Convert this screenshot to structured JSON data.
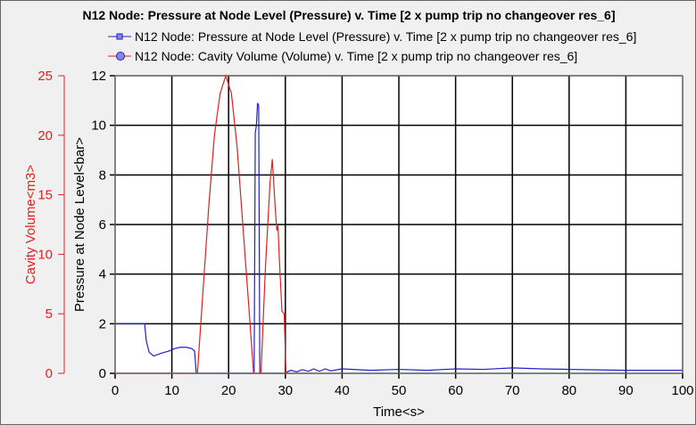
{
  "chart_data": {
    "type": "line",
    "title": "N12 Node: Pressure at Node Level (Pressure) v. Time [2 x pump trip no changeover res_6]",
    "xlabel": "Time<s>",
    "ylabel": "Pressure at Node Level<bar>",
    "y2label": "Cavity Volume<m3>",
    "xlim": [
      0,
      100
    ],
    "ylim": [
      0,
      12
    ],
    "y2lim": [
      0,
      25
    ],
    "xticks": [
      0,
      10,
      20,
      30,
      40,
      50,
      60,
      70,
      80,
      90,
      100
    ],
    "yticks": [
      0,
      2,
      4,
      6,
      8,
      10,
      12
    ],
    "y2ticks": [
      0,
      5,
      10,
      15,
      20,
      25
    ],
    "grid": true,
    "legend_position": "top",
    "series": [
      {
        "name": "N12 Node: Pressure at Node Level (Pressure) v. Time [2 x pump trip no changeover res_6]",
        "color": "#2020c8",
        "axis": "left",
        "points": [
          [
            0,
            2
          ],
          [
            5.2,
            2
          ],
          [
            5.5,
            1.3
          ],
          [
            6,
            0.85
          ],
          [
            6.8,
            0.7
          ],
          [
            8,
            0.8
          ],
          [
            9.5,
            0.9
          ],
          [
            10.5,
            1.0
          ],
          [
            11.5,
            1.05
          ],
          [
            12.5,
            1.05
          ],
          [
            13.5,
            1.0
          ],
          [
            14,
            0.9
          ],
          [
            14.3,
            0
          ],
          [
            24.5,
            0
          ],
          [
            24.7,
            9.7
          ],
          [
            24.9,
            10.0
          ],
          [
            25.1,
            10.9
          ],
          [
            25.3,
            10.8
          ],
          [
            25.5,
            0
          ],
          [
            30,
            0
          ],
          [
            30.5,
            0.08
          ],
          [
            31,
            0.12
          ],
          [
            32,
            0.06
          ],
          [
            33,
            0.15
          ],
          [
            34,
            0.08
          ],
          [
            35,
            0.18
          ],
          [
            36,
            0.08
          ],
          [
            37,
            0.18
          ],
          [
            38,
            0.1
          ],
          [
            40,
            0.18
          ],
          [
            45,
            0.12
          ],
          [
            50,
            0.16
          ],
          [
            55,
            0.12
          ],
          [
            60,
            0.18
          ],
          [
            65,
            0.16
          ],
          [
            70,
            0.22
          ],
          [
            75,
            0.18
          ],
          [
            80,
            0.16
          ],
          [
            85,
            0.14
          ],
          [
            90,
            0.12
          ],
          [
            95,
            0.12
          ],
          [
            100,
            0.12
          ]
        ]
      },
      {
        "name": "N12 Node: Cavity Volume (Volume) v. Time [2 x pump trip no changeover res_6]",
        "color": "#e02020",
        "axis": "right",
        "points": [
          [
            0,
            0
          ],
          [
            14.5,
            0
          ],
          [
            15.5,
            7
          ],
          [
            16.5,
            14
          ],
          [
            17.5,
            20
          ],
          [
            18.5,
            23.5
          ],
          [
            19.5,
            25
          ],
          [
            20.5,
            23.5
          ],
          [
            21.5,
            19
          ],
          [
            22.5,
            12.5
          ],
          [
            23.5,
            6
          ],
          [
            24.4,
            0
          ],
          [
            25.7,
            0
          ],
          [
            26.5,
            9
          ],
          [
            27.3,
            16
          ],
          [
            27.7,
            18
          ],
          [
            28.2,
            14
          ],
          [
            28.5,
            12
          ],
          [
            28.7,
            12.4
          ],
          [
            29,
            9
          ],
          [
            29.4,
            5.2
          ],
          [
            29.8,
            5
          ],
          [
            30.1,
            0
          ],
          [
            30.5,
            0
          ]
        ]
      }
    ]
  }
}
